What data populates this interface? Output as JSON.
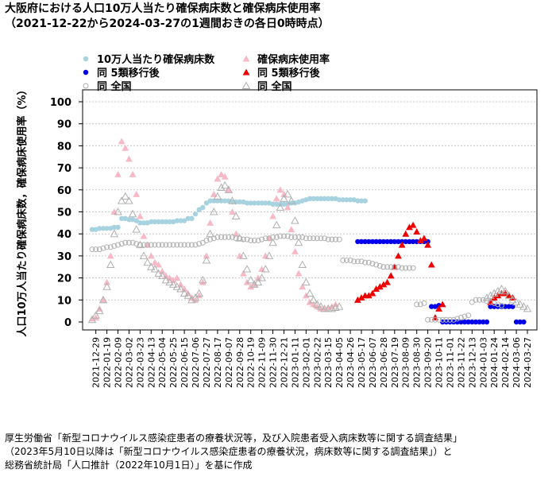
{
  "title_line1": "大阪府における人口10万人当たり確保病床数と確保病床使用率",
  "title_line2": "（2021-12-22から2024-03-27の1週間おきの各日0時時点）",
  "source_line1": "厚生労働省「新型コロナウイルス感染症患者の療養状況等，及び入院患者受入病床数等に関する調査結果」",
  "source_line2": "（2023年5月10日以降は「新型コロナウイルス感染症患者の療養状況，病床数等に関する調査結果」）と",
  "source_line3": "総務省統計局「人口推計（2022年10月1日）」を基に作成",
  "colors": {
    "beds": "#a7d3e0",
    "usage": "#f7b9c5",
    "beds_post": "#0000ee",
    "usage_post": "#ee0000",
    "national": "#b0b0b0"
  },
  "chart_data": {
    "type": "scatter",
    "ylabel": "人口10万人当たり確保病床数，確保病床使用率（%）",
    "ylim": [
      0,
      100
    ],
    "yticks": [
      0,
      10,
      20,
      30,
      40,
      50,
      60,
      70,
      80,
      90,
      100
    ],
    "x_start": "2021-12-22",
    "x_end": "2024-03-27",
    "x_interval_days": 7,
    "xticks": [
      "2021-12-29",
      "2022-01-19",
      "2022-02-09",
      "2022-03-02",
      "2022-03-23",
      "2022-04-13",
      "2022-05-04",
      "2022-05-25",
      "2022-06-15",
      "2022-07-06",
      "2022-07-27",
      "2022-08-17",
      "2022-09-07",
      "2022-09-28",
      "2022-10-19",
      "2022-11-09",
      "2022-11-30",
      "2022-12-21",
      "2023-01-11",
      "2023-02-01",
      "2023-02-22",
      "2023-03-15",
      "2023-04-05",
      "2023-04-26",
      "2023-05-17",
      "2023-06-07",
      "2023-06-28",
      "2023-07-19",
      "2023-08-09",
      "2023-08-30",
      "2023-09-20",
      "2023-10-11",
      "2023-11-01",
      "2023-11-22",
      "2023-12-13",
      "2024-01-03",
      "2024-01-24",
      "2024-02-14",
      "2024-03-06",
      "2024-03-27"
    ],
    "grid": true,
    "legend_position": "top-left",
    "series": [
      {
        "name": "10万人当たり確保病床数",
        "marker": "circle",
        "color_key": "beds",
        "start": "2021-12-22",
        "values": [
          42,
          42,
          42.5,
          42.5,
          42.5,
          42.5,
          43,
          43,
          47,
          47,
          46.5,
          46.5,
          46,
          45,
          45,
          45,
          45.5,
          45.5,
          45.5,
          45.5,
          45.5,
          45.5,
          45.5,
          46,
          46,
          46,
          47,
          47,
          49,
          51,
          52,
          54,
          55,
          55,
          55,
          55,
          55,
          55,
          54.5,
          54.5,
          54.5,
          54.5,
          54,
          54,
          54,
          54,
          54,
          54,
          54,
          53.5,
          53.5,
          53.5,
          53.5,
          53.5,
          54,
          54,
          54.5,
          55,
          55.5,
          56,
          56,
          56,
          56,
          56,
          56,
          56,
          56,
          55.5,
          55.5,
          55.5,
          55.5,
          55.5,
          55,
          55,
          55
        ]
      },
      {
        "name": "確保病床使用率",
        "marker": "triangle",
        "color_key": "usage",
        "start": "2021-12-22",
        "values": [
          1.5,
          2,
          6,
          10,
          18,
          30,
          50,
          67,
          82,
          79,
          74,
          67,
          58,
          48,
          39,
          35,
          30,
          27,
          26,
          23,
          21,
          20,
          19,
          20,
          17,
          15,
          13,
          11,
          10,
          12,
          18,
          30,
          45,
          58,
          65,
          67,
          66,
          60,
          50,
          40,
          30,
          22,
          18,
          16,
          17,
          20,
          24,
          30,
          38,
          48,
          56,
          60,
          58,
          52,
          42,
          32,
          22,
          16,
          12,
          9,
          8,
          7,
          6,
          6,
          6.5,
          7,
          8
        ]
      },
      {
        "name": "同 5類移行後",
        "marker": "circle",
        "color_key": "beds_post",
        "start": "2023-05-10",
        "values": [
          36.5,
          36.5,
          36.5,
          36.5,
          36.5,
          36.5,
          36.5,
          36.5,
          36.5,
          36.5,
          36.5,
          36.5,
          36.5,
          36.5,
          36.5,
          36.5,
          36.5,
          36.5,
          36.5,
          36.5,
          7,
          7,
          7.5,
          0,
          0,
          0,
          0,
          0,
          0,
          0,
          0,
          0,
          0,
          0,
          0,
          0,
          7,
          7,
          7,
          7,
          7,
          7,
          7,
          0,
          0,
          0
        ]
      },
      {
        "name": "同 5類移行後",
        "marker": "triangle",
        "color_key": "usage_post",
        "start": "2023-05-10",
        "values": [
          10,
          11,
          12,
          12,
          13,
          15,
          16,
          17,
          18,
          21,
          25,
          30,
          35,
          40,
          43,
          44,
          41,
          37,
          38,
          35,
          26,
          2,
          6,
          8,
          null,
          null,
          null,
          null,
          null,
          null,
          null,
          null,
          null,
          null,
          null,
          null,
          9,
          11,
          12,
          13,
          13,
          12,
          11
        ]
      },
      {
        "name": "同 全国",
        "marker": "circle-open",
        "color_key": "national",
        "start": "2021-12-22",
        "values": [
          33,
          33,
          33,
          33.5,
          34,
          34,
          34.5,
          35,
          35.5,
          36,
          36,
          36,
          35.5,
          35,
          35,
          35,
          35,
          35,
          35,
          35,
          35,
          35,
          35,
          35,
          35,
          35,
          35,
          35,
          35,
          35.5,
          36,
          37,
          37.5,
          38,
          38.5,
          38.5,
          38.5,
          38.5,
          38.5,
          38,
          38,
          37.5,
          37.5,
          37,
          37,
          37,
          37.5,
          38,
          38,
          38.5,
          38.5,
          39,
          39,
          39,
          38.5,
          38.5,
          38.5,
          38.5,
          38,
          38,
          38,
          38,
          38,
          38,
          37.5,
          37.5,
          37.5,
          37.5,
          28,
          28,
          28,
          27.5,
          27.5,
          27.5,
          27,
          27,
          26.5,
          26,
          25.5,
          25,
          25,
          25,
          25,
          25,
          24.5,
          24.5,
          24.5,
          24.5,
          8,
          8,
          8.5,
          1,
          1,
          1,
          1,
          1,
          1,
          1,
          1,
          1.5,
          2,
          2.5,
          3,
          9,
          10,
          10,
          10,
          9.5,
          9,
          8.5,
          8,
          7.5
        ]
      },
      {
        "name": "同 全国",
        "marker": "triangle-open",
        "color_key": "national",
        "start": "2021-12-22",
        "values": [
          1,
          3,
          5,
          10,
          16,
          26,
          40,
          50,
          55,
          57,
          55,
          49,
          42,
          35,
          30,
          27,
          25,
          24,
          22,
          21,
          19,
          18,
          17,
          16,
          15,
          13,
          12,
          10,
          11,
          13,
          19,
          28,
          40,
          50,
          57,
          61,
          62,
          60,
          55,
          48,
          38,
          30,
          24,
          19,
          17,
          18,
          20,
          24,
          30,
          36,
          44,
          52,
          56,
          58,
          55,
          46,
          36,
          26,
          18,
          13,
          10,
          8,
          7,
          6,
          6,
          6,
          6.5,
          7,
          null,
          null,
          null,
          null,
          null,
          null,
          null,
          null,
          null,
          null,
          null,
          null,
          null,
          null,
          null,
          null,
          null,
          null,
          null,
          null,
          null,
          null,
          null,
          null,
          null,
          null,
          null,
          null,
          null,
          null,
          null,
          null,
          null,
          null,
          null,
          null,
          null,
          null,
          null,
          11,
          12,
          13,
          14,
          15,
          14,
          12,
          10,
          9,
          8,
          7,
          6
        ]
      }
    ]
  }
}
